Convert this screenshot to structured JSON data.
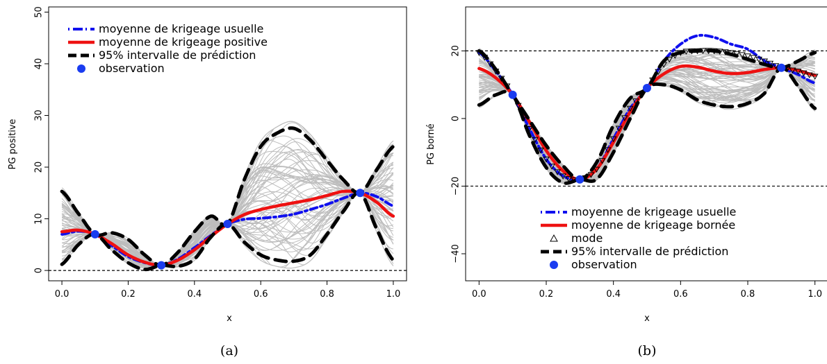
{
  "chart_data": [
    {
      "type": "line",
      "caption": "(a)",
      "xlabel": "x",
      "ylabel": "PG positive",
      "xlim": [
        -0.04,
        1.04
      ],
      "ylim": [
        -2,
        51
      ],
      "x_ticks": [
        "0.0",
        "0.2",
        "0.4",
        "0.6",
        "0.8",
        "1.0"
      ],
      "y_ticks": [
        "0",
        "10",
        "20",
        "30",
        "40",
        "50"
      ],
      "hlines": [
        0
      ],
      "legend_position": "top-left",
      "legend": [
        {
          "label": "moyenne de krigeage usuelle",
          "style": "dashdot",
          "color": "#1010ee"
        },
        {
          "label": "moyenne de krigeage positive",
          "style": "solid",
          "color": "#ee1111"
        },
        {
          "label": "95% intervalle de prédiction",
          "style": "dashed",
          "color": "#000000"
        },
        {
          "label": "observation",
          "style": "point",
          "color": "#1a3cf0"
        }
      ],
      "series": [
        {
          "name": "moyenne de krigeage usuelle",
          "x": [
            0,
            0.05,
            0.1,
            0.15,
            0.2,
            0.25,
            0.3,
            0.35,
            0.4,
            0.45,
            0.5,
            0.55,
            0.6,
            0.65,
            0.7,
            0.75,
            0.8,
            0.85,
            0.9,
            0.95,
            1.0
          ],
          "y": [
            7,
            7.6,
            7,
            4.8,
            2.7,
            1.5,
            1,
            2.2,
            4.4,
            6.8,
            9,
            9.9,
            10.1,
            10.4,
            10.9,
            11.8,
            12.8,
            14.0,
            15,
            14.3,
            12.5
          ]
        },
        {
          "name": "moyenne de krigeage positive",
          "x": [
            0,
            0.05,
            0.1,
            0.15,
            0.2,
            0.25,
            0.3,
            0.35,
            0.4,
            0.45,
            0.5,
            0.55,
            0.6,
            0.65,
            0.7,
            0.75,
            0.8,
            0.85,
            0.9,
            0.95,
            1.0
          ],
          "y": [
            7.5,
            7.8,
            7,
            5.2,
            3.0,
            1.6,
            1,
            2.0,
            4.0,
            6.6,
            9,
            10.8,
            11.8,
            12.5,
            13.1,
            13.7,
            14.5,
            15.3,
            15,
            13.2,
            10.5
          ]
        },
        {
          "name": "95% intervalle de prédiction (haut)",
          "x": [
            0,
            0.05,
            0.1,
            0.15,
            0.2,
            0.25,
            0.3,
            0.35,
            0.4,
            0.45,
            0.5,
            0.55,
            0.6,
            0.65,
            0.7,
            0.75,
            0.8,
            0.85,
            0.9,
            0.95,
            1.0
          ],
          "y": [
            15.3,
            11,
            7,
            7.3,
            6,
            3,
            1,
            3.5,
            7.5,
            10.5,
            9,
            17.5,
            24,
            26.6,
            27.5,
            25.2,
            21.3,
            17.5,
            15,
            19.5,
            24
          ]
        },
        {
          "name": "95% intervalle de prédiction (bas)",
          "x": [
            0,
            0.05,
            0.1,
            0.15,
            0.2,
            0.25,
            0.3,
            0.35,
            0.4,
            0.45,
            0.5,
            0.55,
            0.6,
            0.65,
            0.7,
            0.75,
            0.8,
            0.85,
            0.9,
            0.95,
            1.0
          ],
          "y": [
            1.2,
            5,
            7,
            4.0,
            1.5,
            0.2,
            1,
            0.8,
            2.2,
            6.5,
            9,
            5.5,
            3.0,
            2.0,
            1.8,
            3.0,
            7.0,
            11.5,
            15,
            8,
            2
          ]
        }
      ],
      "observations": {
        "x": [
          0.1,
          0.3,
          0.5,
          0.9
        ],
        "y": [
          7,
          1,
          9,
          15
        ]
      }
    },
    {
      "type": "line",
      "caption": "(b)",
      "xlabel": "x",
      "ylabel": "PG borné",
      "xlim": [
        -0.04,
        1.04
      ],
      "ylim": [
        -48,
        33
      ],
      "x_ticks": [
        "0.0",
        "0.2",
        "0.4",
        "0.6",
        "0.8",
        "1.0"
      ],
      "y_ticks": [
        "−40",
        "−20",
        "0",
        "20"
      ],
      "hlines": [
        20,
        -20
      ],
      "legend_position": "bottom-right",
      "legend": [
        {
          "label": "moyenne de krigeage usuelle",
          "style": "dashdot",
          "color": "#1010ee"
        },
        {
          "label": "moyenne de krigeage bornée",
          "style": "solid",
          "color": "#ee1111"
        },
        {
          "label": "mode",
          "style": "triangle",
          "color": "#000000"
        },
        {
          "label": "95% intervalle de prédiction",
          "style": "dashed",
          "color": "#000000"
        },
        {
          "label": "observation",
          "style": "point",
          "color": "#1a3cf0"
        }
      ],
      "series": [
        {
          "name": "moyenne de krigeage usuelle",
          "x": [
            0,
            0.05,
            0.1,
            0.15,
            0.2,
            0.25,
            0.3,
            0.35,
            0.4,
            0.45,
            0.5,
            0.55,
            0.6,
            0.65,
            0.7,
            0.75,
            0.8,
            0.85,
            0.9,
            0.95,
            1.0
          ],
          "y": [
            19.5,
            14,
            7,
            -3,
            -12,
            -17,
            -18,
            -15,
            -6,
            3,
            9,
            17,
            22,
            24.5,
            24,
            22,
            20.5,
            17,
            15,
            13,
            10.5
          ]
        },
        {
          "name": "moyenne de krigeage bornée",
          "x": [
            0,
            0.05,
            0.1,
            0.15,
            0.2,
            0.25,
            0.3,
            0.35,
            0.4,
            0.45,
            0.5,
            0.55,
            0.6,
            0.65,
            0.7,
            0.75,
            0.8,
            0.85,
            0.9,
            0.95,
            1.0
          ],
          "y": [
            14.8,
            12,
            7,
            -1,
            -9.5,
            -15.5,
            -18,
            -15,
            -7,
            2,
            9,
            13.2,
            15.4,
            15.2,
            14,
            13.3,
            13.6,
            14.5,
            15,
            14.2,
            12.8
          ]
        },
        {
          "name": "mode",
          "x": [
            0,
            0.05,
            0.1,
            0.15,
            0.2,
            0.25,
            0.3,
            0.35,
            0.4,
            0.45,
            0.5,
            0.55,
            0.6,
            0.65,
            0.7,
            0.75,
            0.8,
            0.85,
            0.9,
            0.95,
            1.0
          ],
          "y": [
            19.5,
            14,
            7,
            -3,
            -12,
            -17,
            -18,
            -15,
            -6,
            3,
            9,
            16,
            19.5,
            20,
            20,
            19.5,
            18.5,
            17,
            15,
            14,
            12.5
          ]
        },
        {
          "name": "95% intervalle de prédiction (haut)",
          "x": [
            0,
            0.05,
            0.1,
            0.15,
            0.2,
            0.25,
            0.3,
            0.35,
            0.4,
            0.45,
            0.5,
            0.55,
            0.6,
            0.65,
            0.7,
            0.75,
            0.8,
            0.85,
            0.9,
            0.95,
            1.0
          ],
          "y": [
            20,
            14.5,
            7,
            -0.5,
            -8,
            -14,
            -18,
            -13,
            -2,
            6,
            9,
            17,
            19.5,
            20,
            20,
            19,
            17.5,
            16,
            15,
            17,
            19.5
          ]
        },
        {
          "name": "95% intervalle de prédiction (bas)",
          "x": [
            0,
            0.05,
            0.1,
            0.15,
            0.2,
            0.25,
            0.3,
            0.35,
            0.4,
            0.45,
            0.5,
            0.55,
            0.6,
            0.65,
            0.7,
            0.75,
            0.8,
            0.85,
            0.9,
            0.95,
            1.0
          ],
          "y": [
            4,
            7,
            7,
            -5,
            -14.5,
            -19,
            -18,
            -18,
            -10,
            0,
            9,
            10,
            8.5,
            5.5,
            4,
            3.5,
            4.5,
            7.5,
            15,
            9.5,
            3
          ]
        }
      ],
      "observations": {
        "x": [
          0.1,
          0.3,
          0.5,
          0.9
        ],
        "y": [
          7,
          -18,
          9,
          15
        ]
      }
    }
  ]
}
